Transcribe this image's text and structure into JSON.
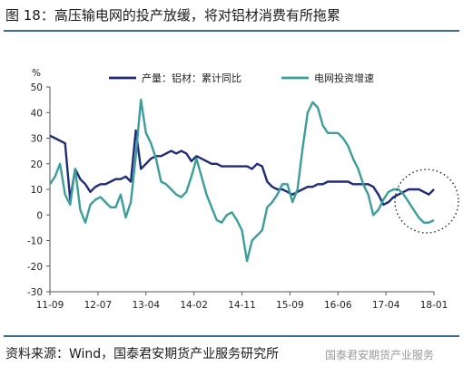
{
  "figure": {
    "title": "图 18：高压输电网的投产放缓，将对铝材消费有所拖累",
    "source": "资料来源：Wind，国泰君安期货产业服务研究所",
    "watermark": "国泰君安期货产业服务"
  },
  "chart_data": {
    "type": "line",
    "ylabel": "%",
    "ylim": [
      -30,
      50
    ],
    "yticks": [
      -30,
      -20,
      -10,
      0,
      10,
      20,
      30,
      40,
      50
    ],
    "x_tick_labels": [
      "11-09",
      "12-07",
      "13-04",
      "14-02",
      "14-11",
      "15-09",
      "16-06",
      "17-04",
      "18-01"
    ],
    "x_start": "2011-09",
    "x_end": "2018-01",
    "grid": false,
    "legend_position": "top",
    "annotation": "dotted circle around the most recent values",
    "series": [
      {
        "name": "产量：铝材：累计同比",
        "color": "#1f2a7a",
        "points": [
          [
            "2011-09",
            31
          ],
          [
            "2011-10",
            30
          ],
          [
            "2011-11",
            29
          ],
          [
            "2011-12",
            28
          ],
          [
            "2012-01",
            6
          ],
          [
            "2012-02",
            18
          ],
          [
            "2012-03",
            14
          ],
          [
            "2012-04",
            12
          ],
          [
            "2012-05",
            9
          ],
          [
            "2012-06",
            11
          ],
          [
            "2012-07",
            12
          ],
          [
            "2012-08",
            12
          ],
          [
            "2012-09",
            13
          ],
          [
            "2012-10",
            14
          ],
          [
            "2012-11",
            14
          ],
          [
            "2012-12",
            15
          ],
          [
            "2013-01",
            13
          ],
          [
            "2013-02",
            33
          ],
          [
            "2013-03",
            18
          ],
          [
            "2013-04",
            20
          ],
          [
            "2013-05",
            22
          ],
          [
            "2013-06",
            23
          ],
          [
            "2013-07",
            23
          ],
          [
            "2013-08",
            24
          ],
          [
            "2013-09",
            25
          ],
          [
            "2013-10",
            24
          ],
          [
            "2013-11",
            25
          ],
          [
            "2013-12",
            24
          ],
          [
            "2014-01",
            21
          ],
          [
            "2014-02",
            23
          ],
          [
            "2014-03",
            22
          ],
          [
            "2014-04",
            21
          ],
          [
            "2014-05",
            20
          ],
          [
            "2014-06",
            20
          ],
          [
            "2014-07",
            19
          ],
          [
            "2014-08",
            19
          ],
          [
            "2014-09",
            19
          ],
          [
            "2014-10",
            19
          ],
          [
            "2014-11",
            19
          ],
          [
            "2014-12",
            19
          ],
          [
            "2015-01",
            18
          ],
          [
            "2015-02",
            20
          ],
          [
            "2015-03",
            19
          ],
          [
            "2015-04",
            13
          ],
          [
            "2015-05",
            11
          ],
          [
            "2015-06",
            10
          ],
          [
            "2015-07",
            10
          ],
          [
            "2015-08",
            9
          ],
          [
            "2015-09",
            8
          ],
          [
            "2015-10",
            9
          ],
          [
            "2015-11",
            10
          ],
          [
            "2015-12",
            11
          ],
          [
            "2016-01",
            11
          ],
          [
            "2016-02",
            12
          ],
          [
            "2016-03",
            12
          ],
          [
            "2016-04",
            13
          ],
          [
            "2016-05",
            13
          ],
          [
            "2016-06",
            13
          ],
          [
            "2016-07",
            13
          ],
          [
            "2016-08",
            13
          ],
          [
            "2016-09",
            12
          ],
          [
            "2016-10",
            12
          ],
          [
            "2016-11",
            12
          ],
          [
            "2016-12",
            12
          ],
          [
            "2017-01",
            11
          ],
          [
            "2017-02",
            8
          ],
          [
            "2017-03",
            4
          ],
          [
            "2017-04",
            5
          ],
          [
            "2017-05",
            7
          ],
          [
            "2017-06",
            8
          ],
          [
            "2017-07",
            9
          ],
          [
            "2017-08",
            10
          ],
          [
            "2017-09",
            10
          ],
          [
            "2017-10",
            10
          ],
          [
            "2017-11",
            9
          ],
          [
            "2017-12",
            8
          ],
          [
            "2018-01",
            10
          ]
        ]
      },
      {
        "name": "电网投资增速",
        "color": "#3a9e9a",
        "points": [
          [
            "2011-09",
            12
          ],
          [
            "2011-10",
            15
          ],
          [
            "2011-11",
            20
          ],
          [
            "2011-12",
            8
          ],
          [
            "2012-01",
            4
          ],
          [
            "2012-02",
            18
          ],
          [
            "2012-03",
            2
          ],
          [
            "2012-04",
            -3
          ],
          [
            "2012-05",
            4
          ],
          [
            "2012-06",
            6
          ],
          [
            "2012-07",
            7
          ],
          [
            "2012-08",
            5
          ],
          [
            "2012-09",
            3
          ],
          [
            "2012-10",
            3
          ],
          [
            "2012-11",
            8
          ],
          [
            "2012-12",
            -1
          ],
          [
            "2013-01",
            5
          ],
          [
            "2013-02",
            23
          ],
          [
            "2013-03",
            45
          ],
          [
            "2013-04",
            32
          ],
          [
            "2013-05",
            28
          ],
          [
            "2013-06",
            22
          ],
          [
            "2013-07",
            13
          ],
          [
            "2013-08",
            12
          ],
          [
            "2013-09",
            10
          ],
          [
            "2013-10",
            8
          ],
          [
            "2013-11",
            7
          ],
          [
            "2013-12",
            9
          ],
          [
            "2014-01",
            15
          ],
          [
            "2014-02",
            22
          ],
          [
            "2014-03",
            15
          ],
          [
            "2014-04",
            8
          ],
          [
            "2014-05",
            3
          ],
          [
            "2014-06",
            -2
          ],
          [
            "2014-07",
            -3
          ],
          [
            "2014-08",
            0
          ],
          [
            "2014-09",
            1
          ],
          [
            "2014-10",
            -2
          ],
          [
            "2014-11",
            -6
          ],
          [
            "2014-12",
            -18
          ],
          [
            "2015-01",
            -10
          ],
          [
            "2015-02",
            -8
          ],
          [
            "2015-03",
            -6
          ],
          [
            "2015-04",
            3
          ],
          [
            "2015-05",
            5
          ],
          [
            "2015-06",
            8
          ],
          [
            "2015-07",
            12
          ],
          [
            "2015-08",
            12
          ],
          [
            "2015-09",
            5
          ],
          [
            "2015-10",
            10
          ],
          [
            "2015-11",
            26
          ],
          [
            "2015-12",
            40
          ],
          [
            "2016-01",
            44
          ],
          [
            "2016-02",
            42
          ],
          [
            "2016-03",
            35
          ],
          [
            "2016-04",
            32
          ],
          [
            "2016-05",
            32
          ],
          [
            "2016-06",
            32
          ],
          [
            "2016-07",
            30
          ],
          [
            "2016-08",
            27
          ],
          [
            "2016-09",
            22
          ],
          [
            "2016-10",
            18
          ],
          [
            "2016-11",
            12
          ],
          [
            "2016-12",
            8
          ],
          [
            "2017-01",
            0
          ],
          [
            "2017-02",
            2
          ],
          [
            "2017-03",
            6
          ],
          [
            "2017-04",
            9
          ],
          [
            "2017-05",
            10
          ],
          [
            "2017-06",
            10
          ],
          [
            "2017-07",
            8
          ],
          [
            "2017-08",
            5
          ],
          [
            "2017-09",
            2
          ],
          [
            "2017-10",
            -1
          ],
          [
            "2017-11",
            -3
          ],
          [
            "2017-12",
            -3
          ],
          [
            "2018-01",
            -2
          ]
        ]
      }
    ]
  }
}
